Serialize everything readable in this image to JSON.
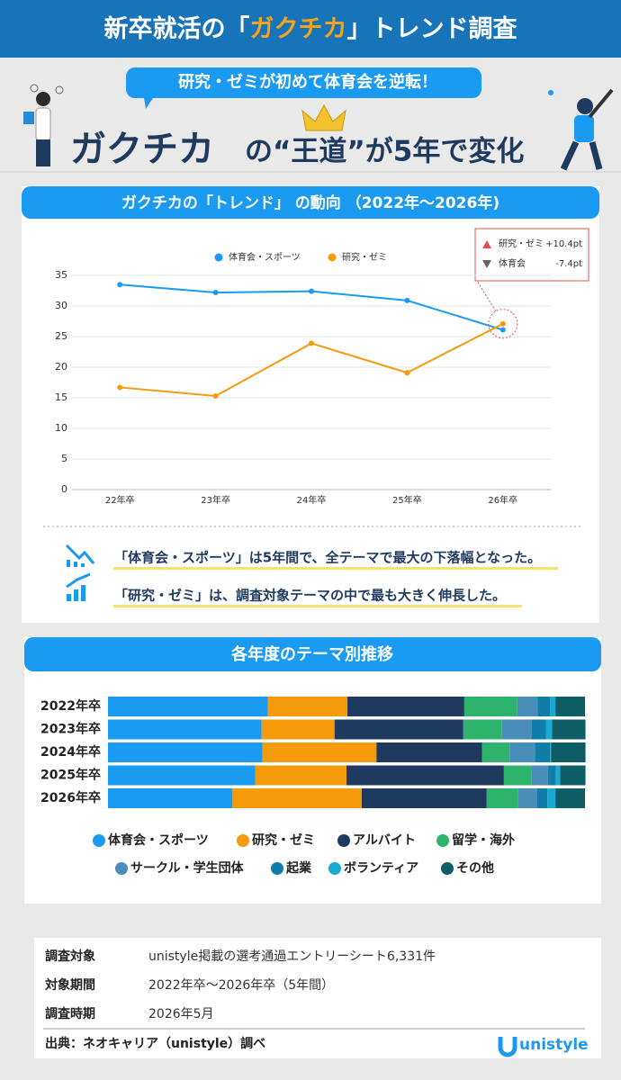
{
  "header": {
    "title_parts": [
      "新卒就活の「",
      "ガクチカ",
      "」トレンド調査"
    ]
  },
  "hero": {
    "bubble": "研究・ゼミが初めて体育会を逆転！",
    "headline_main": "ガクチカ",
    "headline_sub": "の“王道”が5年で変化"
  },
  "chart_data": [
    {
      "type": "line",
      "title": "ガクチカの「トレンド」 の動向 （2022年〜2026年)",
      "categories": [
        "22年卒",
        "23年卒",
        "24年卒",
        "25年卒",
        "26年卒"
      ],
      "series": [
        {
          "name": "体育会・スポーツ",
          "color": "#1a9af0",
          "values": [
            33.5,
            32.2,
            32.4,
            30.9,
            26.1
          ]
        },
        {
          "name": "研究・ゼミ",
          "color": "#f59a0a",
          "values": [
            16.7,
            15.3,
            23.9,
            19.1,
            27.1
          ]
        }
      ],
      "ylim": [
        0,
        35
      ],
      "yticks": [
        0,
        5,
        10,
        15,
        20,
        25,
        30,
        35
      ],
      "grid": true,
      "annotations": [
        {
          "label": "研究・ゼミ",
          "text": "+10.4pt"
        },
        {
          "label": "体育会",
          "text": "-7.4pt"
        }
      ]
    },
    {
      "type": "stacked-bar",
      "title": "各年度のテーマ別推移",
      "orientation": "horizontal",
      "categories": [
        "2022年卒",
        "2023年卒",
        "2024年卒",
        "2025年卒",
        "2026年卒"
      ],
      "xlim": [
        0,
        100
      ],
      "series": [
        {
          "name": "体育会・スポーツ",
          "color": "#1a9af0",
          "values": [
            33.5,
            32.2,
            32.4,
            30.9,
            26.1
          ]
        },
        {
          "name": "研究・ゼミ",
          "color": "#f59a0a",
          "values": [
            16.7,
            15.3,
            23.9,
            19.1,
            27.1
          ]
        },
        {
          "name": "アルバイト",
          "color": "#1f3a5f",
          "values": [
            24.5,
            27.0,
            22.1,
            33.0,
            26.2
          ]
        },
        {
          "name": "留学・海外",
          "color": "#2db36b",
          "values": [
            11.1,
            8.1,
            5.8,
            5.8,
            6.6
          ]
        },
        {
          "name": "サークル・学生団体",
          "color": "#4a8db8",
          "values": [
            4.3,
            6.2,
            5.3,
            3.4,
            4.0
          ]
        },
        {
          "name": "起業",
          "color": "#0e7ea8",
          "values": [
            2.6,
            3.0,
            3.2,
            1.7,
            2.1
          ]
        },
        {
          "name": "ボランティア",
          "color": "#1aa9d0",
          "values": [
            1.1,
            1.3,
            0.2,
            0.9,
            1.7
          ]
        },
        {
          "name": "その他",
          "color": "#0d5c66",
          "values": [
            6.2,
            7.0,
            7.2,
            5.3,
            6.2
          ]
        }
      ]
    }
  ],
  "insights": [
    "「体育会・スポーツ」は5年間で、全テーマで最大の下落幅となった。",
    "「研究・ゼミ」は、調査対象テーマの中で最も大きく伸長した。"
  ],
  "survey": {
    "rows": [
      [
        "調査対象",
        "unistyle掲載の選考通過エントリーシート6,331件"
      ],
      [
        "対象期間",
        "2022年卒〜2026年卒（5年間）"
      ],
      [
        "調査時期",
        "2026年5月"
      ]
    ],
    "source": "出典：ネオキャリア（unistyle）調べ",
    "logo": "unistyle"
  }
}
